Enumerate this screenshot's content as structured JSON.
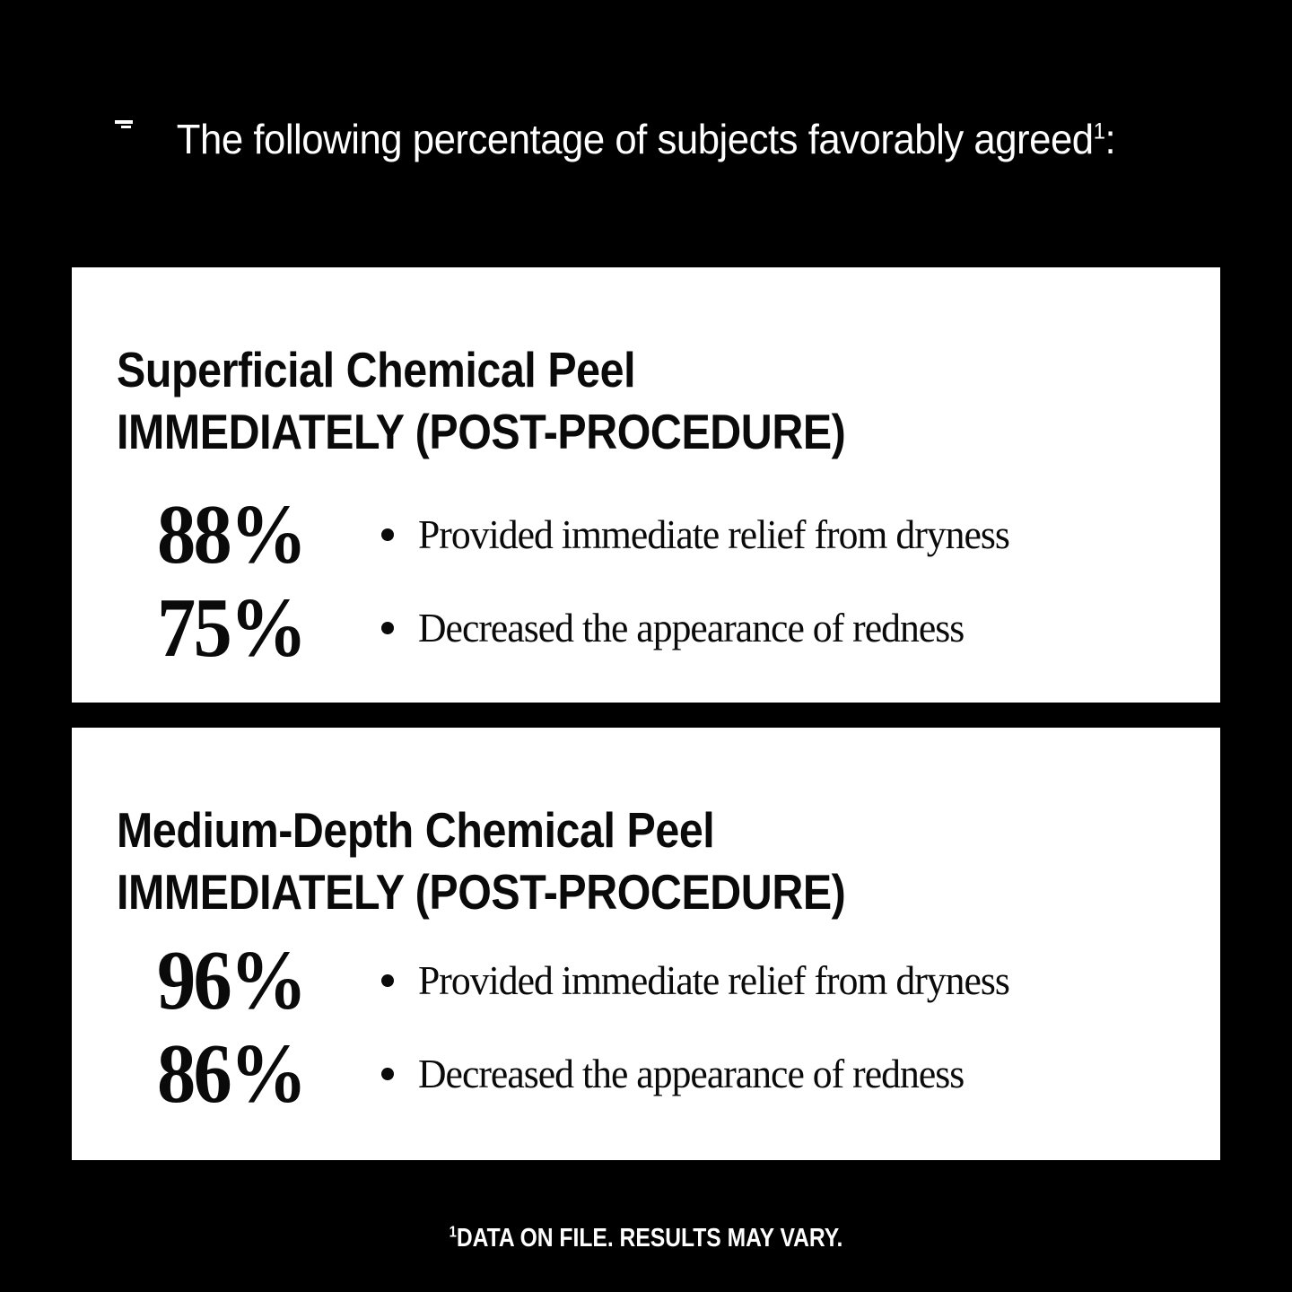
{
  "header": {
    "text": "The following percentage of subjects favorably agreed",
    "superscript": "1",
    "suffix": ":"
  },
  "cards": [
    {
      "title_line1": "Superficial Chemical Peel",
      "title_line2": "IMMEDIATELY (POST-PROCEDURE)",
      "stats": [
        {
          "value": "88%",
          "label": "Provided immediate relief from dryness"
        },
        {
          "value": "75%",
          "label": "Decreased the appearance of redness"
        }
      ]
    },
    {
      "title_line1": "Medium-Depth Chemical Peel",
      "title_line2": "IMMEDIATELY (POST-PROCEDURE)",
      "stats": [
        {
          "value": "96%",
          "label": "Provided immediate relief from dryness"
        },
        {
          "value": "86%",
          "label": "Decreased the appearance of redness"
        }
      ]
    }
  ],
  "footer": {
    "superscript": "1",
    "text": "DATA ON FILE. RESULTS MAY VARY."
  },
  "colors": {
    "background": "#000000",
    "card_background": "#ffffff",
    "card_text": "#0a0a0a",
    "header_text": "#ffffff",
    "footer_text": "#ffffff"
  }
}
